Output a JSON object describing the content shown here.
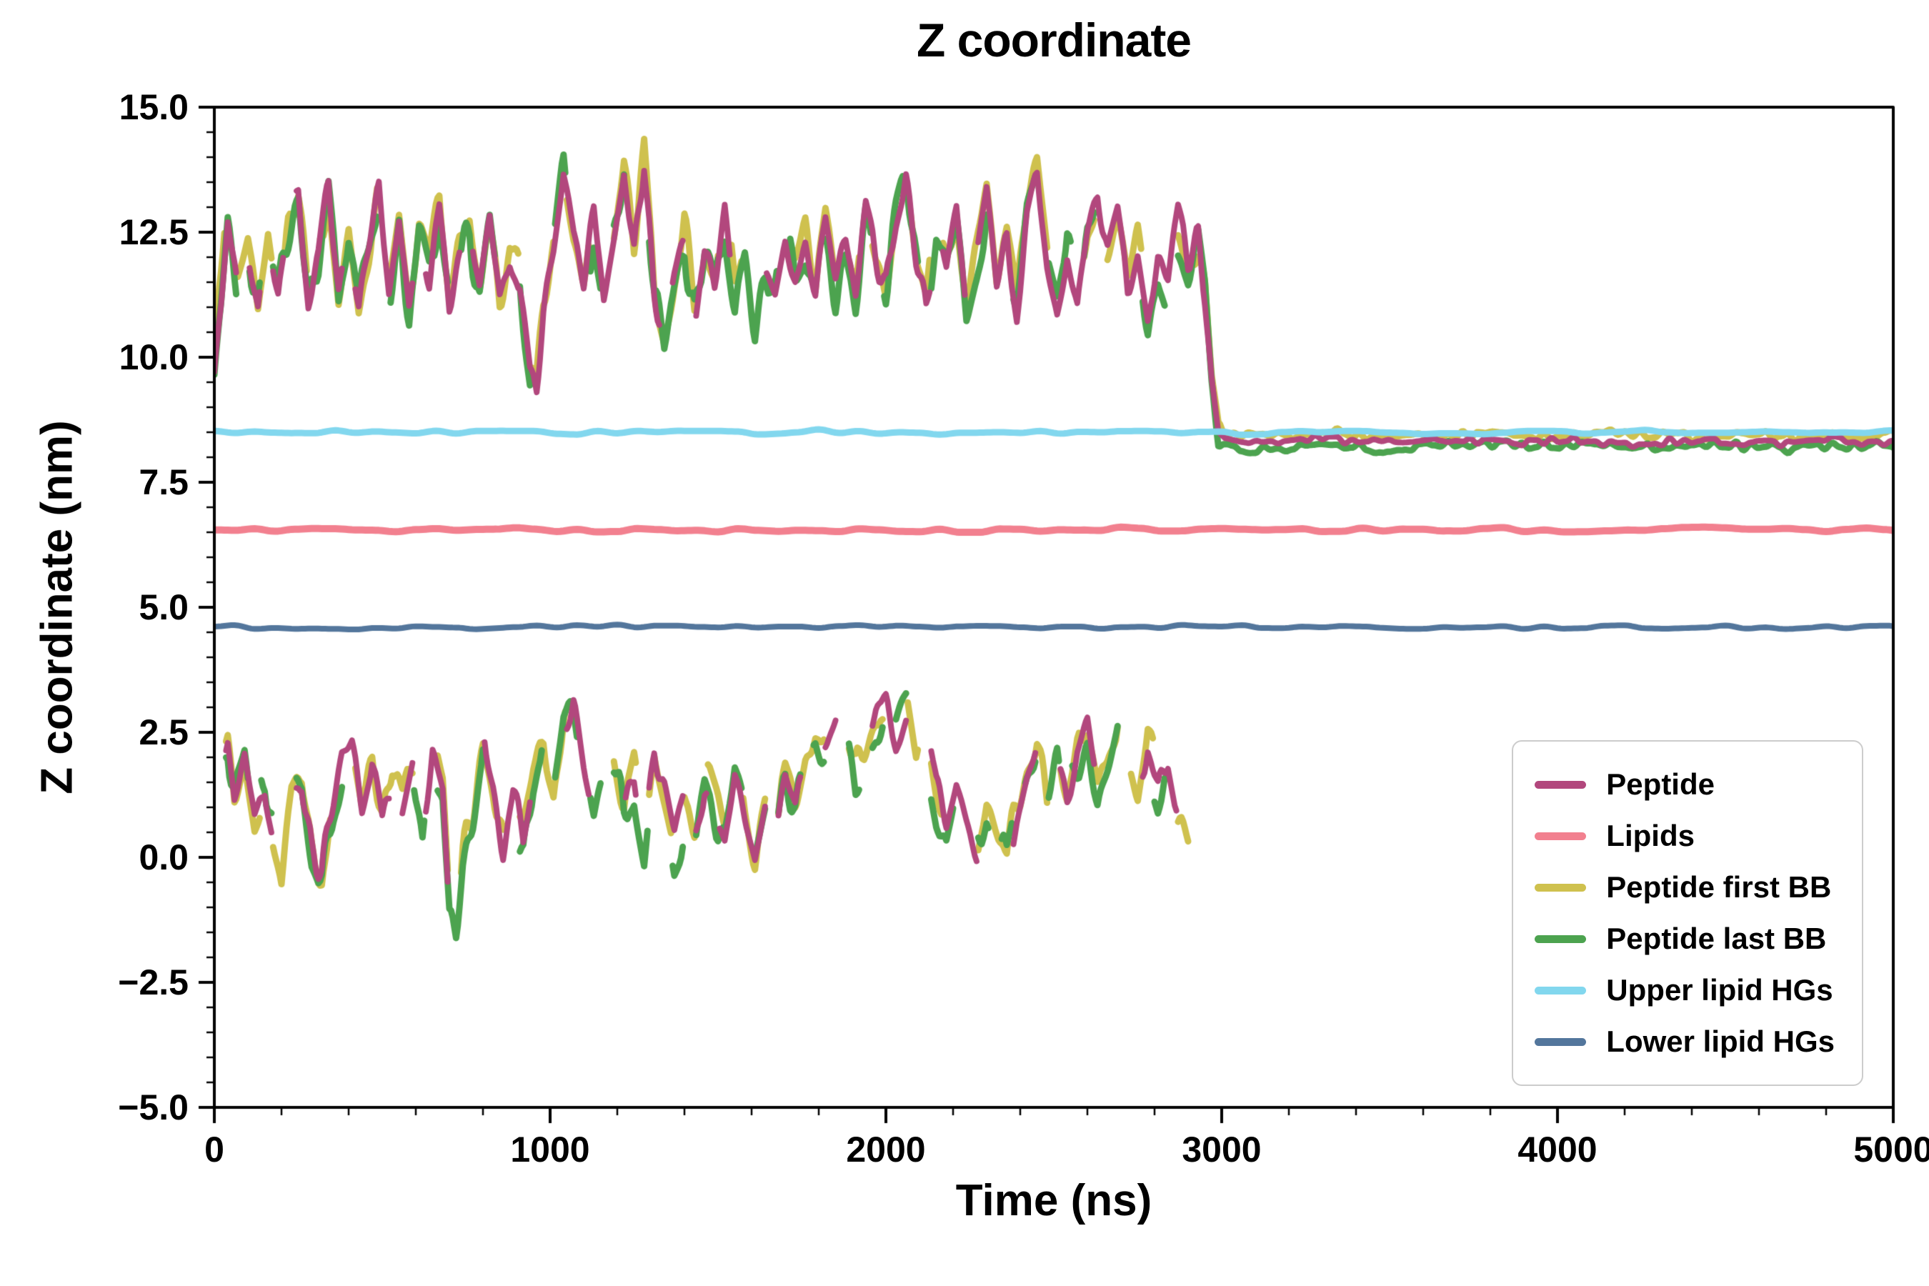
{
  "chart_data": {
    "type": "line",
    "title": "Z coordinate",
    "xlabel": "Time (ns)",
    "ylabel": "Z coordinate (nm)",
    "xlim": [
      0,
      5000
    ],
    "ylim": [
      -5,
      15
    ],
    "grid": false,
    "background": "#ffffff",
    "axis_color": "#000000",
    "xticks": {
      "values": [
        0,
        1000,
        2000,
        3000,
        4000,
        5000
      ],
      "labels": [
        "0",
        "1000",
        "2000",
        "3000",
        "4000",
        "5000"
      ],
      "minor_step": 200
    },
    "yticks": {
      "values": [
        -5,
        -2.5,
        0,
        2.5,
        5,
        7.5,
        10,
        12.5,
        15
      ],
      "labels": [
        "−5.0",
        "−2.5",
        "0.0",
        "2.5",
        "5.0",
        "7.5",
        "10.0",
        "12.5",
        "15.0"
      ],
      "minor_step": 0.5
    },
    "legend": {
      "position": "lower-right",
      "entries": [
        {
          "label": "Peptide",
          "color": "#b2477d"
        },
        {
          "label": "Lipids",
          "color": "#f2808f"
        },
        {
          "label": "Peptide first BB",
          "color": "#cfc14e"
        },
        {
          "label": "Peptide last BB",
          "color": "#4ca34f"
        },
        {
          "label": "Upper lipid HGs",
          "color": "#82d7ee"
        },
        {
          "label": "Lower lipid HGs",
          "color": "#53769c"
        }
      ]
    },
    "paths": {
      "upper_keypoints": [
        [
          0,
          9.6
        ],
        [
          15,
          11.0
        ],
        [
          40,
          12.9
        ],
        [
          70,
          11.4
        ],
        [
          100,
          12.2
        ],
        [
          130,
          11.0
        ],
        [
          160,
          12.6
        ],
        [
          190,
          11.2
        ],
        [
          220,
          12.4
        ],
        [
          250,
          13.1
        ],
        [
          280,
          11.0
        ],
        [
          310,
          11.8
        ],
        [
          340,
          13.3
        ],
        [
          370,
          11.2
        ],
        [
          400,
          12.6
        ],
        [
          430,
          11.0
        ],
        [
          460,
          12.2
        ],
        [
          490,
          13.4
        ],
        [
          520,
          11.4
        ],
        [
          550,
          12.8
        ],
        [
          580,
          11.0
        ],
        [
          610,
          12.3
        ],
        [
          640,
          11.6
        ],
        [
          670,
          12.9
        ],
        [
          700,
          11.2
        ],
        [
          730,
          12.1
        ],
        [
          760,
          12.8
        ],
        [
          790,
          11.3
        ],
        [
          820,
          12.5
        ],
        [
          850,
          11.1
        ],
        [
          880,
          12.0
        ],
        [
          910,
          11.4
        ],
        [
          940,
          9.6
        ],
        [
          960,
          9.3
        ],
        [
          980,
          10.8
        ],
        [
          1010,
          12.1
        ],
        [
          1040,
          13.6
        ],
        [
          1070,
          12.3
        ],
        [
          1100,
          11.5
        ],
        [
          1130,
          12.8
        ],
        [
          1160,
          11.2
        ],
        [
          1190,
          12.4
        ],
        [
          1220,
          13.7
        ],
        [
          1250,
          12.0
        ],
        [
          1280,
          13.9
        ],
        [
          1310,
          11.2
        ],
        [
          1340,
          10.3
        ],
        [
          1370,
          11.6
        ],
        [
          1400,
          12.6
        ],
        [
          1430,
          11.0
        ],
        [
          1460,
          12.2
        ],
        [
          1490,
          11.5
        ],
        [
          1520,
          12.9
        ],
        [
          1550,
          11.3
        ],
        [
          1580,
          12.4
        ],
        [
          1610,
          11.0
        ],
        [
          1640,
          12.0
        ],
        [
          1670,
          11.5
        ],
        [
          1700,
          12.6
        ],
        [
          1730,
          11.8
        ],
        [
          1760,
          12.3
        ],
        [
          1790,
          11.2
        ],
        [
          1820,
          12.7
        ],
        [
          1850,
          11.6
        ],
        [
          1880,
          12.1
        ],
        [
          1910,
          11.3
        ],
        [
          1940,
          12.9
        ],
        [
          1970,
          11.8
        ],
        [
          2000,
          11.3
        ],
        [
          2030,
          12.6
        ],
        [
          2060,
          13.6
        ],
        [
          2090,
          12.2
        ],
        [
          2120,
          11.1
        ],
        [
          2150,
          12.4
        ],
        [
          2180,
          11.6
        ],
        [
          2210,
          13.0
        ],
        [
          2240,
          11.3
        ],
        [
          2270,
          12.2
        ],
        [
          2300,
          13.4
        ],
        [
          2330,
          11.6
        ],
        [
          2360,
          12.5
        ],
        [
          2390,
          11.1
        ],
        [
          2420,
          12.8
        ],
        [
          2450,
          13.5
        ],
        [
          2480,
          12.0
        ],
        [
          2510,
          11.2
        ],
        [
          2540,
          12.3
        ],
        [
          2570,
          11.0
        ],
        [
          2600,
          12.5
        ],
        [
          2630,
          13.3
        ],
        [
          2660,
          12.1
        ],
        [
          2690,
          12.8
        ],
        [
          2720,
          11.4
        ],
        [
          2750,
          12.2
        ],
        [
          2780,
          11.0
        ],
        [
          2810,
          12.0
        ],
        [
          2840,
          11.5
        ],
        [
          2870,
          12.6
        ],
        [
          2900,
          11.8
        ],
        [
          2930,
          12.3
        ],
        [
          2950,
          11.2
        ],
        [
          2970,
          9.5
        ],
        [
          2990,
          8.45
        ],
        [
          3010,
          8.35
        ],
        [
          3100,
          8.3
        ],
        [
          3300,
          8.35
        ],
        [
          3500,
          8.25
        ],
        [
          3700,
          8.35
        ],
        [
          3900,
          8.3
        ],
        [
          4100,
          8.35
        ],
        [
          4300,
          8.3
        ],
        [
          4500,
          8.35
        ],
        [
          4700,
          8.3
        ],
        [
          4900,
          8.35
        ],
        [
          5000,
          8.3
        ]
      ],
      "lower_keypoints": [
        [
          0,
          0.4
        ],
        [
          20,
          1.8
        ],
        [
          40,
          2.3
        ],
        [
          60,
          1.2
        ],
        [
          90,
          1.9
        ],
        [
          120,
          0.8
        ],
        [
          150,
          1.5
        ],
        [
          180,
          0.2
        ],
        [
          200,
          -0.7
        ],
        [
          230,
          0.9
        ],
        [
          260,
          1.4
        ],
        [
          290,
          0.1
        ],
        [
          320,
          -0.4
        ],
        [
          350,
          0.8
        ],
        [
          380,
          1.9
        ],
        [
          410,
          2.1
        ],
        [
          440,
          1.0
        ],
        [
          470,
          1.8
        ],
        [
          500,
          0.5
        ],
        [
          530,
          1.6
        ],
        [
          560,
          0.9
        ],
        [
          590,
          1.8
        ],
        [
          620,
          0.3
        ],
        [
          650,
          2.2
        ],
        [
          680,
          1.4
        ],
        [
          700,
          -0.9
        ],
        [
          720,
          -1.1
        ],
        [
          740,
          0.2
        ],
        [
          770,
          1.2
        ],
        [
          800,
          2.4
        ],
        [
          830,
          1.6
        ],
        [
          860,
          0.4
        ],
        [
          890,
          1.1
        ],
        [
          920,
          0.3
        ],
        [
          950,
          1.6
        ],
        [
          980,
          2.2
        ],
        [
          1010,
          1.0
        ],
        [
          1040,
          2.6
        ],
        [
          1070,
          3.1
        ],
        [
          1100,
          1.8
        ],
        [
          1130,
          0.6
        ],
        [
          1160,
          1.4
        ],
        [
          1190,
          2.0
        ],
        [
          1220,
          0.9
        ],
        [
          1250,
          1.7
        ],
        [
          1280,
          0.4
        ],
        [
          1310,
          2.1
        ],
        [
          1340,
          1.2
        ],
        [
          1370,
          0.3
        ],
        [
          1400,
          1.0
        ],
        [
          1430,
          0.5
        ],
        [
          1460,
          1.4
        ],
        [
          1490,
          0.8
        ],
        [
          1520,
          0.2
        ],
        [
          1550,
          1.6
        ],
        [
          1580,
          0.9
        ],
        [
          1610,
          0.1
        ],
        [
          1640,
          1.2
        ],
        [
          1670,
          0.6
        ],
        [
          1700,
          1.5
        ],
        [
          1730,
          0.9
        ],
        [
          1760,
          2.0
        ],
        [
          1790,
          2.6
        ],
        [
          1820,
          2.2
        ],
        [
          1850,
          2.9
        ],
        [
          1880,
          2.5
        ],
        [
          1910,
          1.6
        ],
        [
          1940,
          2.2
        ],
        [
          1970,
          2.8
        ],
        [
          2000,
          3.0
        ],
        [
          2030,
          2.4
        ],
        [
          2060,
          3.1
        ],
        [
          2090,
          1.9
        ],
        [
          2120,
          2.5
        ],
        [
          2150,
          1.2
        ],
        [
          2180,
          0.5
        ],
        [
          2210,
          1.4
        ],
        [
          2240,
          0.8
        ],
        [
          2270,
          0.2
        ],
        [
          2300,
          1.1
        ],
        [
          2330,
          0.5
        ],
        [
          2360,
          -0.3
        ],
        [
          2390,
          0.8
        ],
        [
          2420,
          1.6
        ],
        [
          2450,
          2.3
        ],
        [
          2480,
          1.2
        ],
        [
          2510,
          1.9
        ],
        [
          2540,
          1.0
        ],
        [
          2570,
          2.0
        ],
        [
          2600,
          2.6
        ],
        [
          2630,
          1.5
        ],
        [
          2660,
          2.2
        ],
        [
          2690,
          2.9
        ],
        [
          2720,
          1.8
        ],
        [
          2750,
          1.1
        ],
        [
          2780,
          2.3
        ],
        [
          2810,
          1.4
        ],
        [
          2840,
          2.0
        ],
        [
          2870,
          0.9
        ],
        [
          2900,
          0.4
        ]
      ]
    },
    "draw_order": [
      "Peptide first BB",
      "Peptide last BB",
      "Peptide",
      "Lipids",
      "Upper lipid HGs",
      "Lower lipid HGs"
    ],
    "series": [
      {
        "name": "Peptide",
        "color": "#b2477d",
        "linewidth": 8,
        "type": "noisy",
        "parts": [
          {
            "path": "upper",
            "t": [
              0,
              5000
            ],
            "jitter_pre": 0.45,
            "jitter_post": 0.1,
            "blend": [
              2950,
              3010
            ],
            "gap_fraction": 0.15,
            "gap_until": 2950,
            "seed": 11,
            "bias": 0
          },
          {
            "path": "lower",
            "t": [
              0,
              2900
            ],
            "jitter": 0.5,
            "gap_fraction": 0.38,
            "gap_until": 5000,
            "seed": 15,
            "bias": 0
          }
        ]
      },
      {
        "name": "Lipids",
        "color": "#f2808f",
        "linewidth": 10,
        "type": "flat",
        "level": 6.55,
        "jitter": 0.05,
        "seed": 41,
        "t": [
          0,
          5000
        ]
      },
      {
        "name": "Peptide first BB",
        "color": "#cfc14e",
        "linewidth": 9,
        "type": "noisy",
        "parts": [
          {
            "path": "upper",
            "t": [
              0,
              5000
            ],
            "jitter_pre": 0.55,
            "jitter_post": 0.12,
            "blend": [
              2950,
              3010
            ],
            "gap_fraction": 0.3,
            "gap_until": 2950,
            "seed": 21,
            "bias": 0.12
          },
          {
            "path": "lower",
            "t": [
              0,
              2900
            ],
            "jitter": 0.6,
            "gap_fraction": 0.42,
            "gap_until": 5000,
            "seed": 25,
            "bias": 0.1
          }
        ]
      },
      {
        "name": "Peptide last BB",
        "color": "#4ca34f",
        "linewidth": 9,
        "type": "noisy",
        "parts": [
          {
            "path": "upper",
            "t": [
              0,
              5000
            ],
            "jitter_pre": 0.65,
            "jitter_post": 0.12,
            "blend": [
              2950,
              3010
            ],
            "gap_fraction": 0.3,
            "gap_until": 2950,
            "seed": 31,
            "bias": -0.1
          },
          {
            "path": "lower",
            "t": [
              0,
              2900
            ],
            "jitter": 0.65,
            "gap_fraction": 0.42,
            "gap_until": 5000,
            "seed": 35,
            "bias": -0.12
          }
        ]
      },
      {
        "name": "Upper lipid HGs",
        "color": "#82d7ee",
        "linewidth": 9,
        "type": "flat",
        "level": 8.5,
        "jitter": 0.045,
        "seed": 51,
        "t": [
          0,
          5000
        ]
      },
      {
        "name": "Lower lipid HGs",
        "color": "#53769c",
        "linewidth": 8,
        "type": "flat",
        "level": 4.6,
        "jitter": 0.045,
        "seed": 61,
        "t": [
          0,
          5000
        ]
      }
    ]
  }
}
